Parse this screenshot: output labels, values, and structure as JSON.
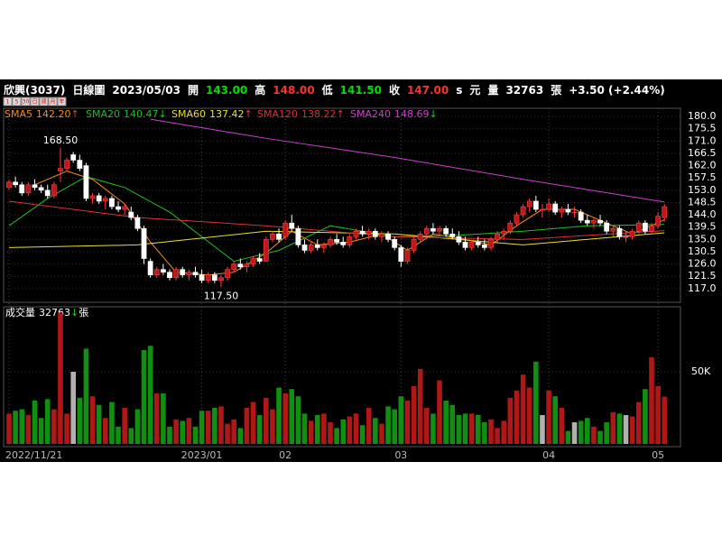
{
  "header": {
    "items": [
      {
        "text": "欣興(3037)",
        "color": "#ffffff"
      },
      {
        "text": "日線圖",
        "color": "#ffffff"
      },
      {
        "text": "2023/05/03",
        "color": "#ffffff"
      },
      {
        "text": "開",
        "color": "#ffffff"
      },
      {
        "text": "143.00",
        "color": "#00e000"
      },
      {
        "text": "高",
        "color": "#ffffff"
      },
      {
        "text": "148.00",
        "color": "#ff3030"
      },
      {
        "text": "低",
        "color": "#ffffff"
      },
      {
        "text": "141.50",
        "color": "#00e000"
      },
      {
        "text": "收",
        "color": "#ffffff"
      },
      {
        "text": "147.00",
        "color": "#ff3030"
      },
      {
        "text": "s",
        "color": "#ffffff"
      },
      {
        "text": "元",
        "color": "#ffffff"
      },
      {
        "text": "量",
        "color": "#ffffff"
      },
      {
        "text": "32763",
        "color": "#ffffff"
      },
      {
        "text": "張",
        "color": "#ffffff"
      },
      {
        "text": "+3.50 (+2.44%)",
        "color": "#ffffff"
      }
    ],
    "buttons": [
      "1",
      "5",
      "30",
      "日",
      "週",
      "月",
      "年"
    ]
  },
  "chart_data": {
    "type": "candlestick",
    "categories": [
      "2022/11/21",
      null,
      null,
      null,
      null,
      null,
      null,
      null,
      null,
      null,
      null,
      null,
      null,
      null,
      null,
      null,
      null,
      null,
      null,
      null,
      null,
      null,
      null,
      null,
      null,
      null,
      null,
      null,
      null,
      null,
      "2023/01",
      null,
      null,
      null,
      null,
      null,
      null,
      null,
      null,
      null,
      null,
      null,
      null,
      "02",
      null,
      null,
      null,
      null,
      null,
      null,
      null,
      null,
      null,
      null,
      null,
      null,
      null,
      null,
      null,
      null,
      null,
      "03",
      null,
      null,
      null,
      null,
      null,
      null,
      null,
      null,
      null,
      null,
      null,
      null,
      null,
      null,
      null,
      null,
      null,
      null,
      null,
      null,
      null,
      null,
      "04",
      null,
      null,
      null,
      null,
      null,
      null,
      null,
      null,
      null,
      null,
      null,
      null,
      null,
      null,
      null,
      null,
      "05",
      null
    ],
    "open": [
      154,
      156,
      155,
      152,
      155,
      154,
      153,
      151,
      160,
      161,
      166,
      164,
      162,
      150,
      151,
      149,
      150,
      147,
      146,
      145,
      143,
      139,
      127,
      122,
      124,
      123,
      121,
      124,
      122,
      123,
      122,
      120,
      122,
      120,
      121,
      124,
      126,
      125,
      126,
      128,
      127,
      135,
      137,
      136,
      141,
      139,
      133,
      131,
      133,
      132,
      133,
      135,
      134,
      133,
      136,
      138,
      137,
      138,
      136,
      137,
      135,
      132,
      127,
      131,
      135,
      137,
      139,
      138,
      139,
      137,
      136,
      134,
      132,
      134,
      133,
      132,
      135,
      137,
      138,
      141,
      144,
      147,
      149,
      146,
      146,
      148,
      145,
      146,
      145,
      145,
      142,
      141,
      142,
      141,
      138,
      139,
      136,
      136,
      138,
      141,
      138,
      140,
      143
    ],
    "high": [
      157,
      158,
      156,
      156,
      157,
      155,
      155,
      156,
      168.5,
      165,
      167,
      166,
      163,
      152,
      152,
      151,
      151,
      149,
      148,
      147,
      144,
      140,
      128,
      125,
      126,
      124,
      125,
      125,
      124,
      125,
      124,
      123,
      123,
      122,
      125,
      127,
      128,
      127,
      129,
      130,
      136,
      138,
      139,
      142,
      144,
      140,
      135,
      134,
      135,
      134,
      136,
      137,
      136,
      137,
      139,
      140,
      139,
      139,
      138,
      138,
      136,
      133,
      132,
      136,
      138,
      140,
      141,
      140,
      140,
      139,
      138,
      136,
      135,
      136,
      135,
      136,
      138,
      139,
      142,
      145,
      148,
      150,
      151,
      148,
      150,
      149,
      147,
      148,
      147,
      146,
      144,
      143,
      144,
      142,
      140,
      140,
      138,
      139,
      142,
      142,
      141,
      145,
      148
    ],
    "low": [
      153,
      154,
      151,
      151,
      153,
      152,
      150,
      150,
      156,
      160,
      163,
      160,
      149,
      148,
      148,
      146,
      146,
      145,
      144,
      142,
      138,
      126,
      121,
      121,
      122,
      120,
      120,
      121,
      120,
      121,
      119,
      119,
      119,
      117.5,
      120,
      123,
      124,
      123,
      125,
      126,
      127,
      134,
      134,
      135,
      138,
      132,
      130,
      130,
      131,
      130,
      132,
      133,
      132,
      132,
      135,
      136,
      135,
      135,
      134,
      134,
      131,
      125,
      126,
      130,
      134,
      136,
      137,
      136,
      136,
      135,
      133,
      131,
      131,
      132,
      131,
      131,
      134,
      135,
      137,
      140,
      143,
      145,
      145,
      143,
      145,
      144,
      143,
      144,
      143,
      141,
      140,
      139,
      140,
      137,
      136,
      135,
      134,
      135,
      137,
      137,
      137,
      139,
      141.5
    ],
    "close": [
      156,
      155,
      152,
      155,
      154,
      153,
      151,
      155,
      161,
      164,
      164,
      161,
      150,
      151,
      149,
      150,
      147,
      146,
      147,
      143,
      139,
      128,
      122,
      124,
      123,
      121,
      124,
      122,
      123,
      122,
      120,
      122,
      120,
      121,
      124,
      126,
      125,
      126,
      128,
      127,
      135,
      137,
      135,
      141,
      139,
      133,
      131,
      133,
      132,
      133,
      135,
      134,
      133,
      136,
      138,
      137,
      138,
      136,
      137,
      135,
      132,
      127,
      131,
      135,
      137,
      139,
      138,
      139,
      137,
      136,
      134,
      132,
      134,
      133,
      132,
      135,
      137,
      138,
      141,
      144,
      147,
      149,
      146,
      146,
      148,
      145,
      146,
      145,
      145,
      142,
      141,
      142,
      141,
      138,
      139,
      136,
      136,
      138,
      141,
      138,
      140,
      143.5,
      147
    ],
    "volume": [
      21000,
      23000,
      24000,
      20000,
      30000,
      18000,
      31000,
      24000,
      91000,
      21000,
      50000,
      32000,
      66000,
      33000,
      27000,
      18000,
      29000,
      12000,
      25000,
      11000,
      24000,
      65000,
      68000,
      35000,
      35000,
      12000,
      17000,
      16000,
      18000,
      12000,
      23000,
      23000,
      25000,
      26000,
      14000,
      17000,
      11000,
      25000,
      29000,
      20000,
      32000,
      24000,
      39000,
      35000,
      38000,
      33000,
      21000,
      16000,
      20000,
      21000,
      15000,
      11000,
      17000,
      19000,
      21000,
      13000,
      25000,
      18000,
      14000,
      26000,
      24000,
      33000,
      30000,
      40000,
      52000,
      25000,
      21000,
      44000,
      30000,
      27000,
      20000,
      21000,
      21000,
      20000,
      15000,
      17000,
      11000,
      16000,
      32000,
      37000,
      48000,
      39000,
      57000,
      20000,
      37000,
      33000,
      25000,
      9000,
      15000,
      16000,
      18000,
      12000,
      9000,
      15000,
      22000,
      21000,
      20000,
      19000,
      29000,
      38000,
      60000,
      40000,
      32763
    ],
    "up_color": "#c01818",
    "down_color": "#ffffff",
    "vol_up_color": "#b01818",
    "vol_down_color": "#109010",
    "vol_flat_color": "#b0b0b0",
    "ma": [
      {
        "name": "SMA5",
        "color": "#ff8c1a",
        "value_label": "142.20",
        "arrow": "↑",
        "x": [
          4,
          9,
          13,
          18,
          22,
          26,
          31,
          35,
          40,
          44,
          48,
          53,
          58,
          62,
          66,
          71,
          75,
          79,
          83,
          88,
          93,
          97,
          102
        ],
        "values": [
          155,
          160,
          157,
          148,
          134,
          123,
          122,
          123,
          130,
          138,
          133,
          134,
          137,
          131,
          137,
          135,
          133,
          140,
          146,
          146,
          141,
          137,
          142.2
        ]
      },
      {
        "name": "SMA20",
        "color": "#20c020",
        "value_label": "140.47",
        "arrow": "↓",
        "x": [
          0,
          6,
          12,
          18,
          25,
          35,
          42,
          50,
          60,
          70,
          80,
          90,
          102
        ],
        "values": [
          140,
          150,
          158,
          154,
          145,
          127,
          131,
          140,
          136,
          136.5,
          138,
          140,
          140.47
        ]
      },
      {
        "name": "SMA60",
        "color": "#e8e030",
        "value_label": "137.42",
        "arrow": "↑",
        "x": [
          0,
          20,
          40,
          60,
          80,
          102
        ],
        "values": [
          132,
          133,
          138,
          137,
          133,
          137.42
        ]
      },
      {
        "name": "SMA120",
        "color": "#e03030",
        "value_label": "138.22",
        "arrow": "↑",
        "x": [
          0,
          20,
          40,
          60,
          80,
          102
        ],
        "values": [
          149,
          143,
          140,
          136,
          135,
          138.22
        ]
      },
      {
        "name": "SMA240",
        "color": "#d040d0",
        "value_label": "148.69",
        "arrow": "↓",
        "x": [
          22,
          40,
          60,
          80,
          102
        ],
        "values": [
          179,
          172,
          165,
          157,
          148.69
        ]
      }
    ],
    "arrow_up_color": "#ff3030",
    "arrow_down_color": "#20d020",
    "ylim": [
      112,
      183
    ],
    "yticks": [
      {
        "value": 180,
        "label": "180.0"
      },
      {
        "value": 175.5,
        "label": "175.5"
      },
      {
        "value": 171,
        "label": "171.0"
      },
      {
        "value": 166.5,
        "label": "166.5"
      },
      {
        "value": 162,
        "label": "162.0"
      },
      {
        "value": 157.5,
        "label": "157.5"
      },
      {
        "value": 153,
        "label": "153.0"
      },
      {
        "value": 148.5,
        "label": "148.5"
      },
      {
        "value": 144,
        "label": "144.0"
      },
      {
        "value": 139.5,
        "label": "139.5"
      },
      {
        "value": 135,
        "label": "135.0"
      },
      {
        "value": 130.5,
        "label": "130.5"
      },
      {
        "value": 126,
        "label": "126.0"
      },
      {
        "value": 121.5,
        "label": "121.5"
      },
      {
        "value": 117,
        "label": "117.0"
      }
    ],
    "annotations": [
      {
        "value": 168.5,
        "label": "168.50"
      },
      {
        "value": 117.5,
        "label": "117.50"
      }
    ],
    "volume_title": "成交量",
    "volume_last": {
      "value": 32763,
      "label": "32763"
    },
    "volume_arrow": "↓",
    "volume_unit": "張",
    "volume_ylim": [
      0,
      95000
    ],
    "volume_yticks": [
      {
        "value": 50000,
        "label": "50K"
      }
    ]
  }
}
